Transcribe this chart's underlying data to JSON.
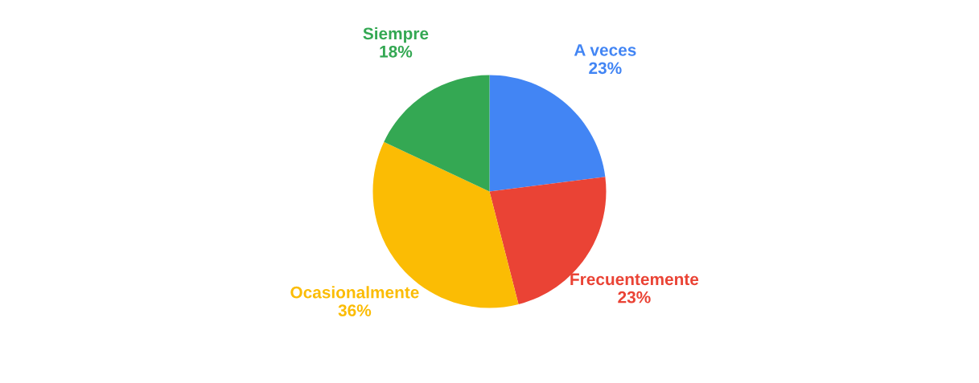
{
  "chart_data": {
    "type": "pie",
    "categories": [
      "A veces",
      "Frecuentemente",
      "Ocasionalmente",
      "Siempre"
    ],
    "values": [
      23,
      23,
      36,
      18
    ],
    "colors": [
      "#4285f4",
      "#ea4335",
      "#fbbc04",
      "#34a853"
    ],
    "value_labels": [
      "23%",
      "23%",
      "36%",
      "18%"
    ],
    "legend": false
  }
}
